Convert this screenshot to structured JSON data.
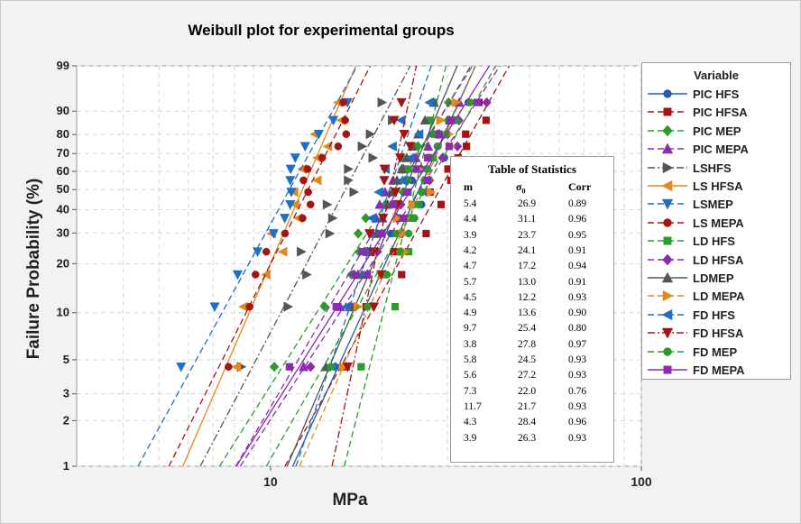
{
  "chart_data": {
    "type": "scatter",
    "title": "Weibull plot for experimental groups",
    "xlabel": "MPa",
    "ylabel": "Failure Probability (%)",
    "xscale": "log",
    "yscale": "weibull-probability",
    "xlim": [
      3,
      100
    ],
    "ylim": [
      1,
      99
    ],
    "xticks": [
      "10",
      "100"
    ],
    "yticks": [
      1,
      2,
      3,
      5,
      10,
      20,
      30,
      40,
      50,
      60,
      70,
      80,
      90,
      99
    ],
    "grid": true,
    "legend_title": "Variable",
    "legend_position": "right",
    "series": [
      {
        "name": "PIC HFS",
        "color": "#1f5fa8",
        "marker": "circle",
        "line": "solid",
        "m": 5.4,
        "s0": 26.9
      },
      {
        "name": "PIC HFSA",
        "color": "#a31515",
        "marker": "square",
        "line": "dash",
        "m": 4.4,
        "s0": 31.1
      },
      {
        "name": "PIC MEP",
        "color": "#2e9a2e",
        "marker": "diamond",
        "line": "dash",
        "m": 3.9,
        "s0": 23.7
      },
      {
        "name": "PIC MEPA",
        "color": "#8a2bb0",
        "marker": "triangle-up",
        "line": "dash",
        "m": 4.2,
        "s0": 24.1
      },
      {
        "name": "LSHFS",
        "color": "#555555",
        "marker": "triangle-right",
        "line": "dashdot",
        "m": 4.7,
        "s0": 17.2
      },
      {
        "name": "LS HFSA",
        "color": "#e08a1e",
        "marker": "triangle-left",
        "line": "solid",
        "m": 5.7,
        "s0": 13.0
      },
      {
        "name": "LSMEP",
        "color": "#1f6fc4",
        "marker": "triangle-down",
        "line": "dash",
        "m": 4.5,
        "s0": 12.2
      },
      {
        "name": "LS MEPA",
        "color": "#a31515",
        "marker": "circle",
        "line": "dash",
        "m": 4.9,
        "s0": 13.6
      },
      {
        "name": "LD HFS",
        "color": "#2e9a2e",
        "marker": "square",
        "line": "dash",
        "m": 9.7,
        "s0": 25.4
      },
      {
        "name": "LD HFSA",
        "color": "#8a2bb0",
        "marker": "diamond",
        "line": "dash",
        "m": 3.8,
        "s0": 27.8
      },
      {
        "name": "LDMEP",
        "color": "#555555",
        "marker": "triangle-up",
        "line": "solid",
        "m": 5.8,
        "s0": 24.5
      },
      {
        "name": "LD MEPA",
        "color": "#e08a1e",
        "marker": "triangle-right",
        "line": "dash",
        "m": 5.6,
        "s0": 27.2
      },
      {
        "name": "FD HFS",
        "color": "#1f6fc4",
        "marker": "triangle-left",
        "line": "dash",
        "m": 7.3,
        "s0": 22.0
      },
      {
        "name": "FD HFSA",
        "color": "#a31515",
        "marker": "triangle-down",
        "line": "dashdot",
        "m": 11.7,
        "s0": 21.7
      },
      {
        "name": "FD MEP",
        "color": "#2e9a2e",
        "marker": "circle",
        "line": "dash",
        "m": 4.3,
        "s0": 28.4
      },
      {
        "name": "FD MEPA",
        "color": "#8a2bb0",
        "marker": "square",
        "line": "solid",
        "m": 3.9,
        "s0": 26.3
      }
    ],
    "stats_table": {
      "title": "Table of Statistics",
      "headers": [
        "m",
        "σ0",
        "Corr"
      ],
      "rows": [
        [
          "5.4",
          "26.9",
          "0.89"
        ],
        [
          "4.4",
          "31.1",
          "0.96"
        ],
        [
          "3.9",
          "23.7",
          "0.95"
        ],
        [
          "4.2",
          "24.1",
          "0.91"
        ],
        [
          "4.7",
          "17.2",
          "0.94"
        ],
        [
          "5.7",
          "13.0",
          "0.91"
        ],
        [
          "4.5",
          "12.2",
          "0.93"
        ],
        [
          "4.9",
          "13.6",
          "0.90"
        ],
        [
          "9.7",
          "25.4",
          "0.80"
        ],
        [
          "3.8",
          "27.8",
          "0.97"
        ],
        [
          "5.8",
          "24.5",
          "0.93"
        ],
        [
          "5.6",
          "27.2",
          "0.93"
        ],
        [
          "7.3",
          "22.0",
          "0.76"
        ],
        [
          "11.7",
          "21.7",
          "0.93"
        ],
        [
          "4.3",
          "28.4",
          "0.96"
        ],
        [
          "3.9",
          "26.3",
          "0.93"
        ]
      ]
    }
  }
}
